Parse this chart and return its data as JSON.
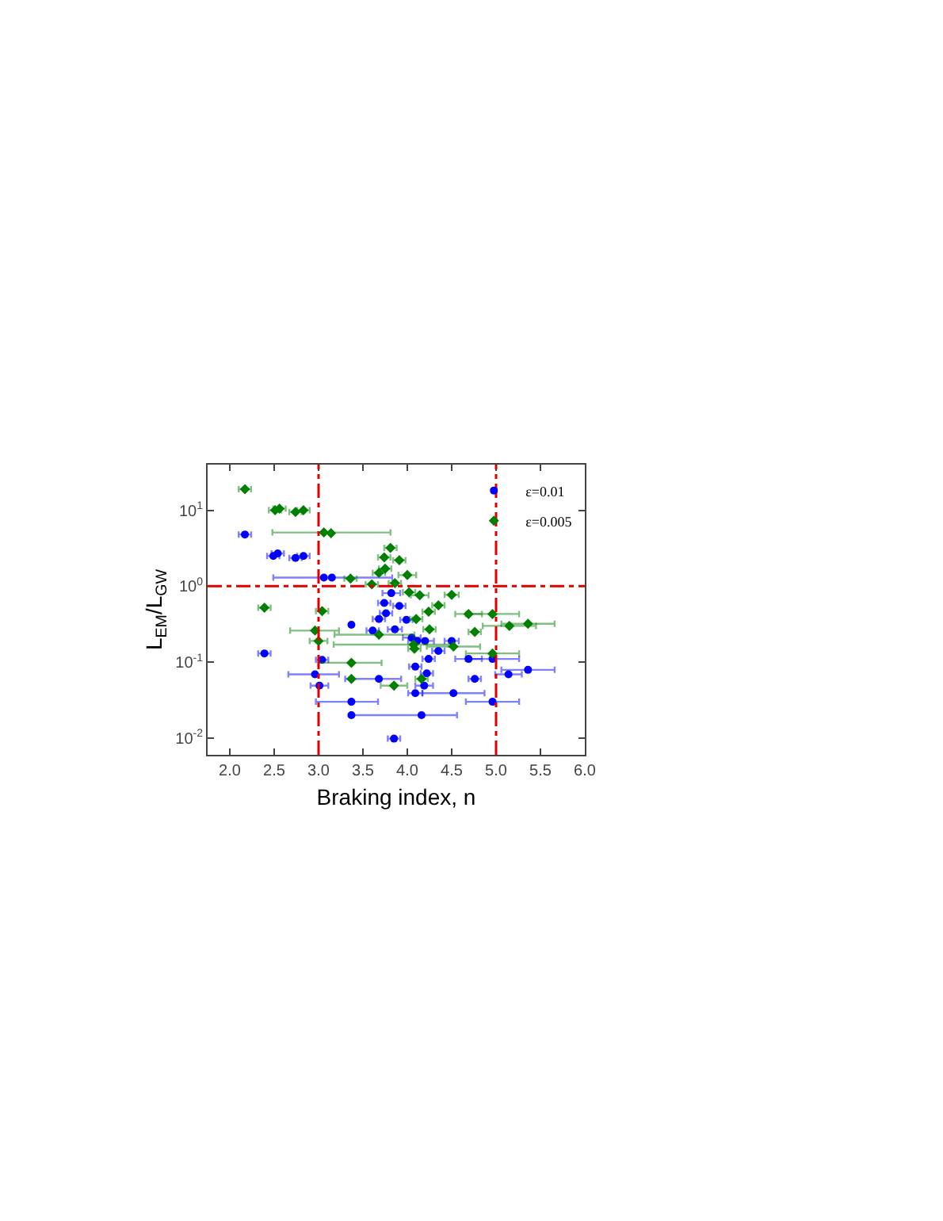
{
  "chart_data": {
    "type": "scatter",
    "xlabel": "Braking index, n",
    "ylabel": "L$_{EM}$/L$_{GW}$",
    "log": "y",
    "grid": false,
    "legend": "top right",
    "xlim": [
      1.75,
      6.0
    ],
    "xticks": [
      {
        "value": 2,
        "label": "2.0"
      },
      {
        "value": 2.5,
        "label": "2.5"
      },
      {
        "value": 3,
        "label": "3.0"
      },
      {
        "value": 3.5,
        "label": "3.5"
      },
      {
        "value": 4,
        "label": "4.0"
      },
      {
        "value": 4.5,
        "label": "4.5"
      },
      {
        "value": 5,
        "label": "5.0"
      },
      {
        "value": 5.5,
        "label": "5.5"
      },
      {
        "value": 6,
        "label": "6.0"
      }
    ],
    "ylim": [
      0.006,
      40
    ],
    "yticks": [
      {
        "value": 0.01,
        "label": "10$^{-2}$"
      },
      {
        "value": 0.1,
        "label": "10$^{-1}$"
      },
      {
        "value": 1,
        "label": "10$^{0}$"
      },
      {
        "value": 10,
        "label": "10$^{1}$"
      }
    ],
    "ref_lines": [
      {
        "axis": "x",
        "value": 3,
        "color": "#e00000",
        "line_style": "dashdot"
      },
      {
        "axis": "x",
        "value": 5,
        "color": "#e00000",
        "line_style": "dashdot"
      },
      {
        "axis": "y",
        "value": 1,
        "color": "#e00000",
        "line_style": "dashdot"
      }
    ],
    "series": [
      {
        "name": "ε=0.01",
        "color": "#0000ff",
        "marker": "circle",
        "x": [
          2.17,
          2.49,
          2.54,
          2.74,
          2.83,
          3.06,
          3.15,
          2.39,
          3.04,
          2.96,
          3.01,
          3.82,
          3.74,
          3.91,
          3.76,
          3.68,
          3.37,
          3.61,
          3.86,
          3.99,
          4.05,
          4.11,
          4.2,
          4.5,
          4.35,
          4.24,
          4.69,
          4.96,
          4.09,
          4.22,
          5.36,
          5.14,
          4.76,
          3.68,
          4.19,
          4.09,
          4.52,
          4.96,
          3.37,
          3.37,
          4.16,
          3.85
        ],
        "values": [
          4.8,
          2.5,
          2.7,
          2.35,
          2.5,
          1.3,
          1.3,
          0.13,
          0.107,
          0.069,
          0.049,
          0.81,
          0.6,
          0.55,
          0.44,
          0.37,
          0.31,
          0.26,
          0.27,
          0.36,
          0.21,
          0.19,
          0.19,
          0.19,
          0.14,
          0.11,
          0.11,
          0.11,
          0.087,
          0.071,
          0.079,
          0.069,
          0.06,
          0.06,
          0.049,
          0.039,
          0.039,
          0.03,
          0.03,
          0.02,
          0.02,
          0.0098
        ],
        "xerrors": [
          0.07,
          0.07,
          0.07,
          0.07,
          0.07,
          [
            2.49,
            3.83
          ],
          null,
          0.07,
          0.07,
          [
            2.66,
            3.23
          ],
          0.1,
          0.1,
          0.07,
          0.07,
          0.07,
          0.07,
          null,
          0.07,
          0.08,
          0.07,
          0.1,
          0.1,
          0.1,
          0.08,
          0.07,
          0.07,
          0.15,
          0.3,
          0.07,
          0.07,
          0.3,
          0.15,
          0.07,
          [
            3.3,
            3.93
          ],
          0.1,
          0.08,
          0.35,
          0.3,
          [
            2.97,
            3.67
          ],
          null,
          [
            3.36,
            4.56
          ],
          0.07
        ]
      },
      {
        "name": "ε=0.005",
        "color": "#008000",
        "marker": "diamond",
        "x": [
          2.17,
          2.51,
          2.56,
          2.74,
          2.83,
          3.06,
          3.14,
          2.39,
          3.04,
          2.96,
          3.0,
          3.81,
          3.91,
          3.74,
          3.75,
          3.68,
          4.0,
          3.36,
          3.6,
          3.86,
          4.02,
          4.14,
          4.5,
          4.35,
          4.24,
          4.1,
          4.69,
          4.96,
          5.15,
          5.36,
          4.76,
          4.25,
          4.07,
          4.52,
          4.96,
          3.37,
          3.68,
          3.37,
          3.85,
          4.08,
          4.16
        ],
        "values": [
          19,
          10,
          10.5,
          9.5,
          10,
          5.1,
          5.0,
          0.52,
          0.47,
          0.26,
          0.19,
          3.2,
          2.2,
          2.4,
          1.7,
          1.5,
          1.4,
          1.26,
          1.06,
          1.1,
          0.83,
          0.76,
          0.77,
          0.56,
          0.46,
          0.37,
          0.43,
          0.43,
          0.3,
          0.32,
          0.25,
          0.27,
          0.17,
          0.16,
          0.13,
          0.098,
          0.23,
          0.06,
          0.049,
          0.15,
          0.06
        ],
        "xerrors": [
          0.07,
          0.07,
          0.07,
          0.07,
          0.07,
          [
            2.48,
            3.81
          ],
          null,
          0.07,
          0.07,
          [
            2.68,
            3.23
          ],
          0.1,
          0.07,
          0.07,
          0.07,
          0.07,
          0.07,
          0.1,
          0.07,
          0.07,
          0.07,
          0.07,
          0.1,
          0.08,
          0.07,
          0.07,
          0.07,
          0.15,
          0.3,
          0.3,
          0.3,
          0.07,
          0.07,
          [
            3.17,
            4.47
          ],
          0.3,
          0.3,
          [
            3.0,
            3.71
          ],
          [
            3.18,
            4.08
          ],
          null,
          0.15,
          0.07,
          0.07
        ]
      }
    ]
  }
}
